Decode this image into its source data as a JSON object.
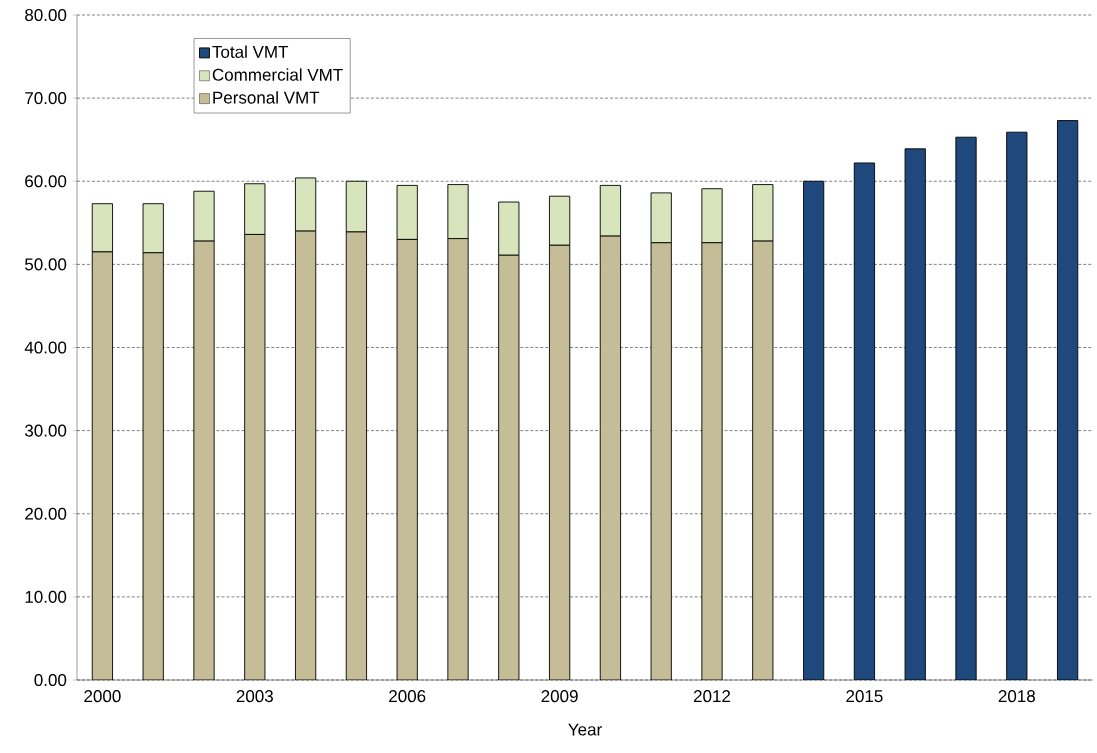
{
  "chart_data": {
    "type": "bar",
    "stacked": true,
    "xlabel": "Year",
    "categories": [
      "2000",
      null,
      null,
      "2003",
      null,
      null,
      "2006",
      null,
      null,
      "2009",
      null,
      null,
      "2012",
      null,
      null,
      "2015",
      null,
      null,
      "2018",
      null
    ],
    "series": [
      {
        "name": "Personal VMT",
        "color": "#c4bd97",
        "values": [
          51.5,
          51.4,
          52.8,
          53.6,
          54.0,
          53.9,
          53.0,
          53.1,
          51.1,
          52.3,
          53.4,
          52.6,
          52.6,
          52.8,
          null,
          null,
          null,
          null,
          null,
          null
        ]
      },
      {
        "name": "Commercial VMT",
        "color": "#d8e4bc",
        "values": [
          5.8,
          5.9,
          6.0,
          6.1,
          6.4,
          6.1,
          6.5,
          6.5,
          6.4,
          5.9,
          6.1,
          6.0,
          6.5,
          6.8,
          null,
          null,
          null,
          null,
          null,
          null
        ]
      },
      {
        "name": "Total VMT",
        "color": "#1f497d",
        "values": [
          null,
          null,
          null,
          null,
          null,
          null,
          null,
          null,
          null,
          null,
          null,
          null,
          null,
          null,
          60.0,
          62.2,
          63.9,
          65.3,
          65.9,
          67.3
        ]
      }
    ],
    "ylim": [
      0,
      80
    ],
    "yticks": [
      {
        "value": 0,
        "label": "0.00"
      },
      {
        "value": 10,
        "label": "10.00"
      },
      {
        "value": 20,
        "label": "20.00"
      },
      {
        "value": 30,
        "label": "30.00"
      },
      {
        "value": 40,
        "label": "40.00"
      },
      {
        "value": 50,
        "label": "50.00"
      },
      {
        "value": 60,
        "label": "60.00"
      },
      {
        "value": 70,
        "label": "70.00"
      },
      {
        "value": 80,
        "label": "80.00"
      }
    ],
    "grid": "y",
    "legend": "top left"
  }
}
